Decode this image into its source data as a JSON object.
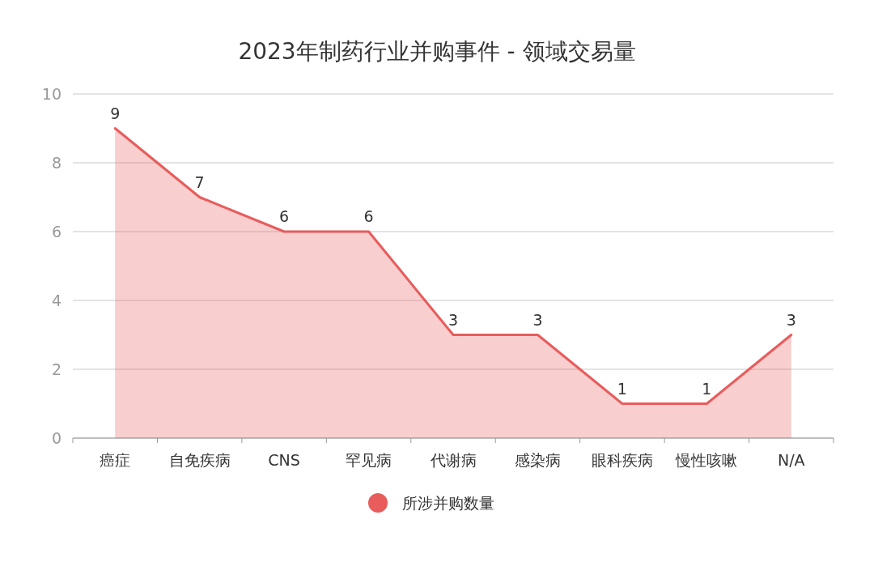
{
  "chart_data": {
    "type": "area",
    "title": "2023年制药行业并购事件 - 领域交易量",
    "categories": [
      "癌症",
      "自免疾病",
      "CNS",
      "罕见病",
      "代谢病",
      "感染病",
      "眼科疾病",
      "慢性咳嗽",
      "N/A"
    ],
    "series": [
      {
        "name": "所涉并购数量",
        "color": "#e85c5c",
        "values": [
          9,
          7,
          6,
          6,
          3,
          3,
          1,
          1,
          3
        ]
      }
    ],
    "ylim": [
      0,
      10
    ],
    "yticks": [
      0,
      2,
      4,
      6,
      8,
      10
    ],
    "grid": "y",
    "data_labels": true,
    "legend": "bottom"
  }
}
